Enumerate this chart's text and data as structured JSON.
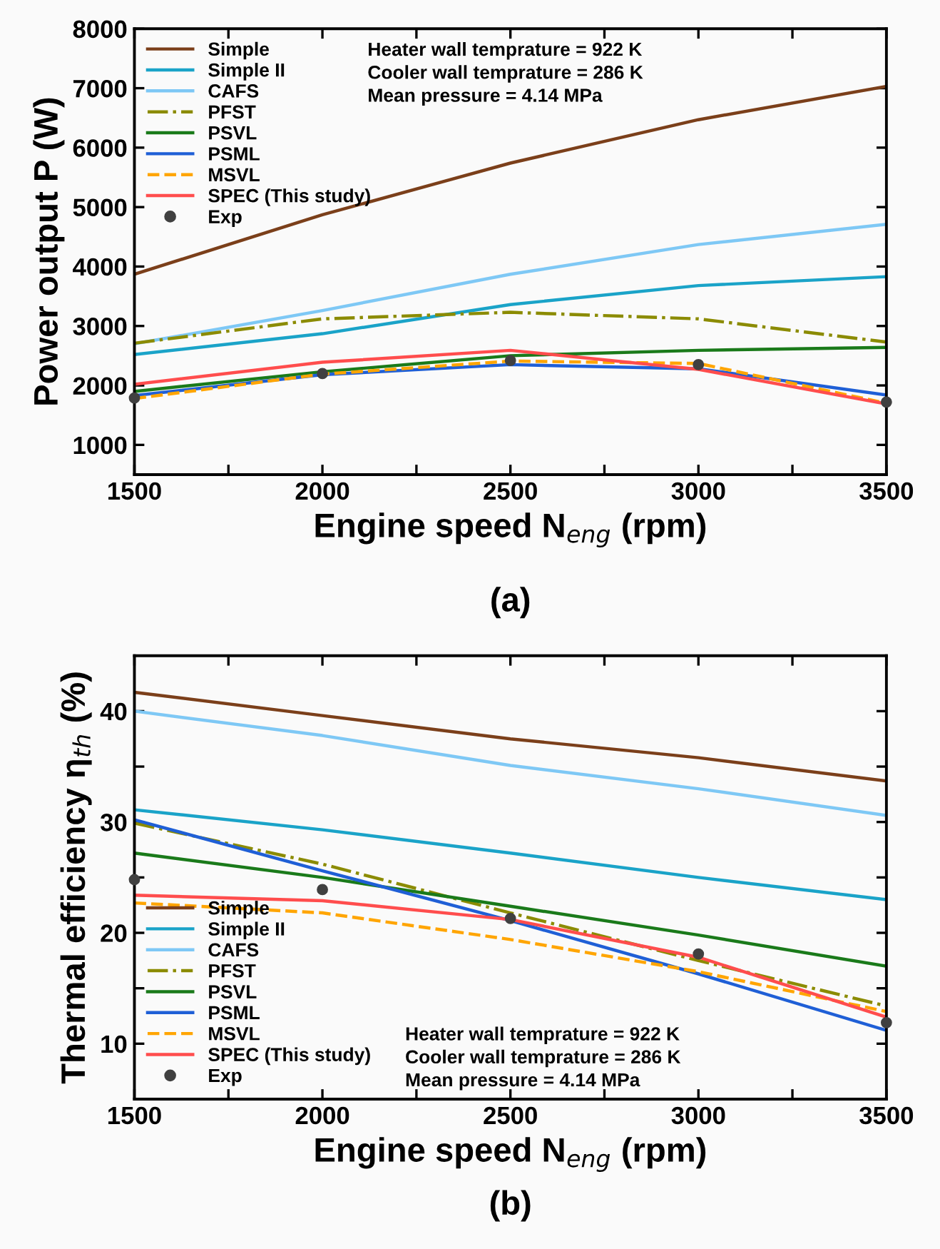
{
  "chart_data": [
    {
      "type": "line",
      "xlabel": "Engine speed N$_{eng}$ (rpm)",
      "ylabel": "Power output P (W)",
      "x": [
        1500,
        2000,
        2500,
        3000,
        3500
      ],
      "xlim": [
        1500,
        3500
      ],
      "ylim": [
        500,
        8000
      ],
      "xticks": [
        1500,
        {
          "value": 1750,
          "label": null
        },
        2000,
        {
          "value": 2250,
          "label": null
        },
        2500,
        {
          "value": 2750,
          "label": null
        },
        3000,
        {
          "value": 3250,
          "label": null
        },
        3500
      ],
      "yticks": [
        1000,
        2000,
        3000,
        4000,
        5000,
        6000,
        7000,
        8000
      ],
      "legend": "top left",
      "grid": false,
      "annotations": [
        "Heater wall temprature = 922 K",
        "Cooler wall temprature = 286 K",
        "Mean pressure = 4.14 MPa",
        "(a)"
      ],
      "series": [
        {
          "name": "Simple",
          "color": "#7b3f1a",
          "line_style": "solid",
          "values": [
            3870,
            4870,
            5740,
            6470,
            7030
          ]
        },
        {
          "name": "Simple II",
          "color": "#1aa3c8",
          "line_style": "solid",
          "values": [
            2520,
            2870,
            3360,
            3680,
            3830
          ]
        },
        {
          "name": "CAFS",
          "color": "#7ec8f5",
          "line_style": "solid",
          "values": [
            2700,
            3260,
            3870,
            4370,
            4710
          ]
        },
        {
          "name": "PFST",
          "color": "#8b8b00",
          "line_style": "dashdot",
          "values": [
            2710,
            3120,
            3230,
            3120,
            2730
          ]
        },
        {
          "name": "PSVL",
          "color": "#1a7a1a",
          "line_style": "solid",
          "values": [
            1900,
            2230,
            2500,
            2590,
            2640
          ]
        },
        {
          "name": "PSML",
          "color": "#1f5fd6",
          "line_style": "solid",
          "values": [
            1830,
            2180,
            2350,
            2280,
            1840
          ]
        },
        {
          "name": "MSVL",
          "color": "#ffa500",
          "line_style": "dashed",
          "values": [
            1780,
            2190,
            2410,
            2370,
            1700
          ]
        },
        {
          "name": "SPEC (This study)",
          "color": "#ff4d4d",
          "line_style": "solid",
          "values": [
            2020,
            2390,
            2590,
            2270,
            1690
          ]
        },
        {
          "name": "Exp",
          "type": "scatter",
          "marker": "circle",
          "color": "#404040",
          "values": [
            1790,
            2200,
            2420,
            2350,
            1720
          ]
        }
      ]
    },
    {
      "type": "line",
      "xlabel": "Engine speed N$_{eng}$ (rpm)",
      "ylabel": "Thermal efficiency η$_{th}$ (%)",
      "x": [
        1500,
        2000,
        2500,
        3000,
        3500
      ],
      "xlim": [
        1500,
        3500
      ],
      "ylim": [
        5,
        45
      ],
      "xticks": [
        1500,
        {
          "value": 1750,
          "label": null
        },
        2000,
        {
          "value": 2250,
          "label": null
        },
        2500,
        {
          "value": 2750,
          "label": null
        },
        3000,
        {
          "value": 3250,
          "label": null
        },
        3500
      ],
      "yticks": [
        10,
        {
          "value": 15,
          "label": null
        },
        20,
        {
          "value": 25,
          "label": null
        },
        30,
        {
          "value": 35,
          "label": null
        },
        40
      ],
      "legend": "bottom left",
      "grid": false,
      "annotations": [
        "Heater wall temprature = 922 K",
        "Cooler wall temprature = 286 K",
        "Mean pressure = 4.14 MPa",
        "(b)"
      ],
      "series": [
        {
          "name": "Simple",
          "color": "#7b3f1a",
          "line_style": "solid",
          "values": [
            41.7,
            39.6,
            37.5,
            35.8,
            33.7
          ]
        },
        {
          "name": "Simple II",
          "color": "#1aa3c8",
          "line_style": "solid",
          "values": [
            31.1,
            29.3,
            27.2,
            25.0,
            23.0
          ]
        },
        {
          "name": "CAFS",
          "color": "#7ec8f5",
          "line_style": "solid",
          "values": [
            40.0,
            37.8,
            35.1,
            33.0,
            30.6
          ]
        },
        {
          "name": "PFST",
          "color": "#8b8b00",
          "line_style": "dashdot",
          "values": [
            29.9,
            26.2,
            21.8,
            17.5,
            13.4
          ]
        },
        {
          "name": "PSVL",
          "color": "#1a7a1a",
          "line_style": "solid",
          "values": [
            27.2,
            25.0,
            22.4,
            19.8,
            17.0
          ]
        },
        {
          "name": "PSML",
          "color": "#1f5fd6",
          "line_style": "solid",
          "values": [
            30.2,
            25.6,
            21.1,
            16.3,
            11.2
          ]
        },
        {
          "name": "MSVL",
          "color": "#ffa500",
          "line_style": "dashed",
          "values": [
            22.7,
            21.8,
            19.4,
            16.5,
            12.9
          ]
        },
        {
          "name": "SPEC (This study)",
          "color": "#ff4d4d",
          "line_style": "solid",
          "values": [
            23.4,
            22.9,
            21.2,
            17.8,
            12.4
          ]
        },
        {
          "name": "Exp",
          "type": "scatter",
          "marker": "circle",
          "color": "#404040",
          "values": [
            24.8,
            23.9,
            21.3,
            18.1,
            11.9
          ]
        }
      ]
    }
  ]
}
